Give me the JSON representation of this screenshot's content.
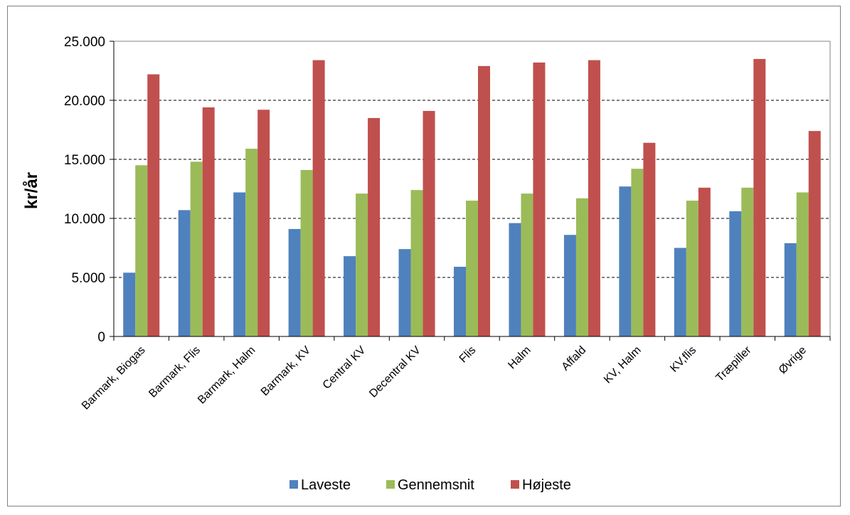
{
  "chart_data": {
    "type": "bar",
    "title": "",
    "xlabel": "",
    "ylabel": "kr/år",
    "ylim": [
      0,
      25000
    ],
    "yticks": [
      0,
      5000,
      10000,
      15000,
      20000,
      25000
    ],
    "ytick_labels": [
      "0",
      "5.000",
      "10.000",
      "15.000",
      "20.000",
      "25.000"
    ],
    "grid": true,
    "legend_position": "bottom",
    "categories": [
      "Barmark, Biogas",
      "Barmark, Flis",
      "Barmark, Halm",
      "Barmark, KV",
      "Central KV",
      "Decentral KV",
      "Flis",
      "Halm",
      "Affald",
      "KV, Halm",
      "KV,flis",
      "Træpiller",
      "Øvrige"
    ],
    "series": [
      {
        "name": "Laveste",
        "color": "#4f81bd",
        "values": [
          5400,
          10700,
          12200,
          9100,
          6800,
          7400,
          5900,
          9600,
          8600,
          12700,
          7500,
          10600,
          7900
        ]
      },
      {
        "name": "Gennemsnit",
        "color": "#9bbb59",
        "values": [
          14500,
          14800,
          15900,
          14100,
          12100,
          12400,
          11500,
          12100,
          11700,
          14200,
          11500,
          12600,
          12200
        ]
      },
      {
        "name": "Højeste",
        "color": "#c0504d",
        "values": [
          22200,
          19400,
          19200,
          23400,
          18500,
          19100,
          22900,
          23200,
          23400,
          16400,
          12600,
          23500,
          17400
        ]
      }
    ]
  }
}
